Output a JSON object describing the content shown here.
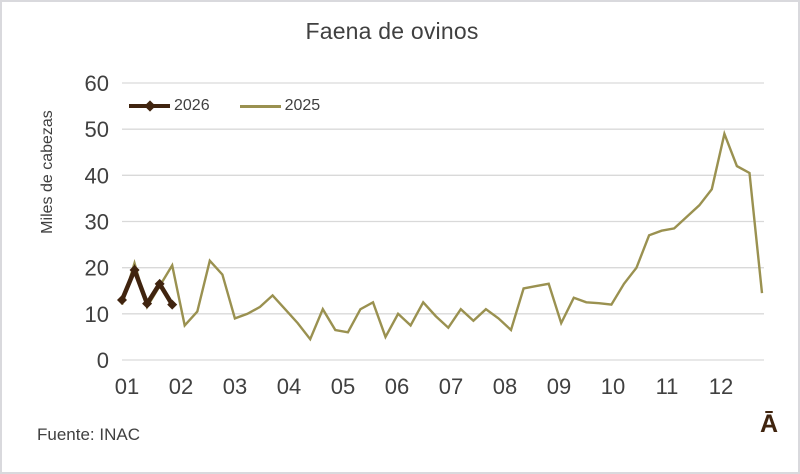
{
  "window": {
    "background": "#ffffff",
    "border_color": "#d9d9dd",
    "text_color": "#404040",
    "gridline_color": "#d9d9d9"
  },
  "chart_data": {
    "type": "line",
    "title": "Faena de ovinos",
    "ylabel": "Miles de cabezas",
    "xlabel": "",
    "ylim": [
      0,
      60
    ],
    "yticks": [
      0,
      10,
      20,
      30,
      40,
      50,
      60
    ],
    "x_month_labels": [
      "01",
      "02",
      "03",
      "04",
      "05",
      "06",
      "07",
      "08",
      "09",
      "10",
      "11",
      "12"
    ],
    "x_unit": "weekly points across months 01-12",
    "grid": "horizontal gridlines on",
    "legend_position": "top-left inside plot",
    "series": [
      {
        "name": "2026",
        "color": "#40240f",
        "marker": "diamond",
        "values": [
          13,
          19.5,
          12.2,
          16.5,
          12
        ]
      },
      {
        "name": "2025",
        "color": "#9a9150",
        "marker": "none",
        "values": [
          12,
          21,
          11.5,
          16,
          20.5,
          7.5,
          10.5,
          21.5,
          18.5,
          9,
          10,
          11.5,
          14,
          11,
          8,
          4.5,
          11,
          6.5,
          6,
          11,
          12.5,
          5,
          10,
          7.5,
          12.5,
          9.5,
          7,
          11,
          8.5,
          11,
          9,
          6.5,
          15.5,
          16,
          16.5,
          8,
          13.5,
          12.5,
          12.3,
          12,
          16.5,
          20,
          27,
          28,
          28.5,
          31,
          33.5,
          37,
          49,
          42,
          40.5,
          14.5
        ]
      }
    ]
  },
  "footer": {
    "source": "Fuente: INAC",
    "watermark": "Ā"
  }
}
